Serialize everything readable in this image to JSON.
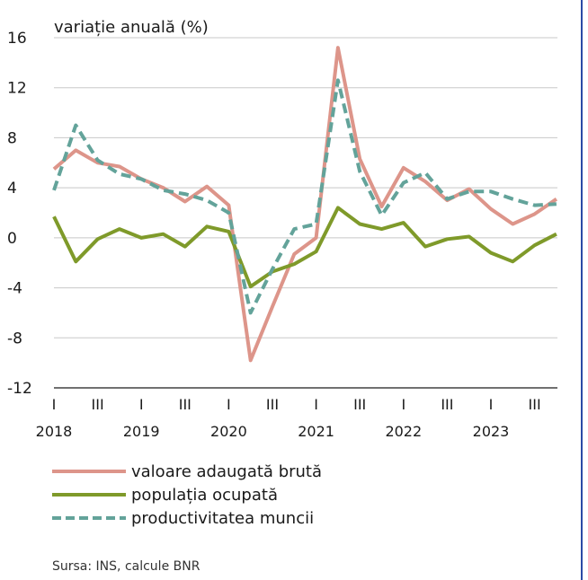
{
  "chart_data": {
    "type": "line",
    "ylabel": "variație anuală (%)",
    "ylim": [
      -12,
      16
    ],
    "yticks": [
      -12,
      -8,
      -4,
      0,
      4,
      8,
      12,
      16
    ],
    "grid": true,
    "legend_position": "bottom-left",
    "quarters": [
      "2018 Q1",
      "2018 Q2",
      "2018 Q3",
      "2018 Q4",
      "2019 Q1",
      "2019 Q2",
      "2019 Q3",
      "2019 Q4",
      "2020 Q1",
      "2020 Q2",
      "2020 Q3",
      "2020 Q4",
      "2021 Q1",
      "2021 Q2",
      "2021 Q3",
      "2021 Q4",
      "2022 Q1",
      "2022 Q2",
      "2022 Q3",
      "2022 Q4",
      "2023 Q1",
      "2023 Q2",
      "2023 Q3",
      "2023 Q4"
    ],
    "quarter_tick_labels": [
      "I",
      "",
      "III",
      "",
      "I",
      "",
      "III",
      "",
      "I",
      "",
      "III",
      "",
      "I",
      "",
      "III",
      "",
      "I",
      "",
      "III",
      "",
      "I",
      "",
      "III",
      ""
    ],
    "year_labels": [
      "2018",
      "2019",
      "2020",
      "2021",
      "2022",
      "2023"
    ],
    "series": [
      {
        "name": "valoare adaugată brută",
        "color": "#dd958a",
        "style": "solid",
        "values": [
          5.5,
          7.0,
          6.0,
          5.7,
          4.7,
          4.0,
          2.9,
          4.1,
          2.6,
          -9.8,
          -5.5,
          -1.3,
          0.0,
          15.2,
          6.3,
          2.5,
          5.6,
          4.5,
          3.0,
          3.9,
          2.3,
          1.1,
          1.9,
          3.1
        ]
      },
      {
        "name": "populația ocupată",
        "color": "#7f9a2a",
        "style": "solid",
        "values": [
          1.7,
          -1.9,
          -0.1,
          0.7,
          0.0,
          0.3,
          -0.7,
          0.9,
          0.5,
          -3.9,
          -2.7,
          -2.1,
          -1.1,
          2.4,
          1.1,
          0.7,
          1.2,
          -0.7,
          -0.1,
          0.1,
          -1.2,
          -1.9,
          -0.6,
          0.3
        ]
      },
      {
        "name": "productivitatea muncii",
        "color": "#63a39a",
        "style": "dashed",
        "values": [
          3.8,
          9.0,
          6.2,
          5.1,
          4.7,
          3.8,
          3.5,
          3.0,
          2.0,
          -6.0,
          -2.5,
          0.7,
          1.1,
          12.6,
          5.3,
          1.8,
          4.4,
          5.2,
          3.1,
          3.7,
          3.7,
          3.1,
          2.6,
          2.7
        ]
      }
    ]
  },
  "source_text": "Sursa: INS, calcule BNR"
}
